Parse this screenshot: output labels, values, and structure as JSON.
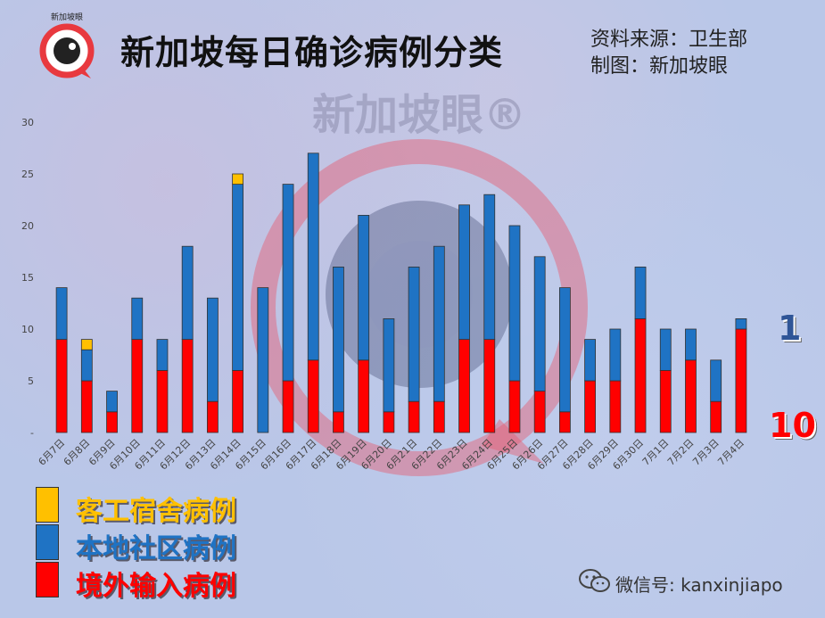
{
  "header": {
    "title": "新加坡每日确诊病例分类",
    "source_line": "资料来源：卫生部",
    "maker_line": "制图：新加坡眼",
    "logo_text": "新加坡眼"
  },
  "watermark": {
    "text": "新加坡眼®"
  },
  "side_numbers": {
    "local": "1",
    "imported": "10"
  },
  "legend": [
    {
      "label": "客工宿舍病例",
      "color": "#FFC000"
    },
    {
      "label": "本地社区病例",
      "color": "#1F73C4"
    },
    {
      "label": "境外输入病例",
      "color": "#FF0000"
    }
  ],
  "footer": {
    "wechat": "微信号: kanxinjiapo"
  },
  "colors": {
    "dorm": "#FFC000",
    "local": "#1F73C4",
    "imported": "#FF0000",
    "local_text": "#2F5597",
    "imported_text": "#FF0000"
  },
  "chart_data": {
    "type": "bar",
    "stacked": true,
    "categories": [
      "6月7日",
      "6月8日",
      "6月9日",
      "6月10日",
      "6月11日",
      "6月12日",
      "6月13日",
      "6月14日",
      "6月15日",
      "6月16日",
      "6月17日",
      "6月18日",
      "6月19日",
      "6月20日",
      "6月21日",
      "6月22日",
      "6月23日",
      "6月24日",
      "6月25日",
      "6月26日",
      "6月27日",
      "6月28日",
      "6月29日",
      "6月30日",
      "7月1日",
      "7月2日",
      "7月3日",
      "7月4日"
    ],
    "series": [
      {
        "name": "境外输入病例",
        "color": "#FF0000",
        "values": [
          9,
          5,
          2,
          9,
          6,
          9,
          3,
          6,
          0,
          5,
          7,
          2,
          7,
          2,
          3,
          3,
          9,
          9,
          5,
          4,
          2,
          5,
          5,
          11,
          6,
          7,
          3,
          10
        ]
      },
      {
        "name": "本地社区病例",
        "color": "#1F73C4",
        "values": [
          5,
          3,
          2,
          4,
          3,
          9,
          10,
          18,
          14,
          19,
          20,
          14,
          14,
          9,
          13,
          15,
          13,
          14,
          15,
          13,
          12,
          4,
          5,
          5,
          4,
          3,
          4,
          1
        ]
      },
      {
        "name": "客工宿舍病例",
        "color": "#FFC000",
        "values": [
          0,
          1,
          0,
          0,
          0,
          0,
          0,
          1,
          0,
          0,
          0,
          0,
          0,
          0,
          0,
          0,
          0,
          0,
          0,
          0,
          0,
          0,
          0,
          0,
          0,
          0,
          0,
          0
        ]
      }
    ],
    "yticks": [
      "30",
      "25",
      "20",
      "15",
      "10",
      "5",
      "-"
    ],
    "ylim": [
      0,
      30
    ],
    "grid": false
  }
}
